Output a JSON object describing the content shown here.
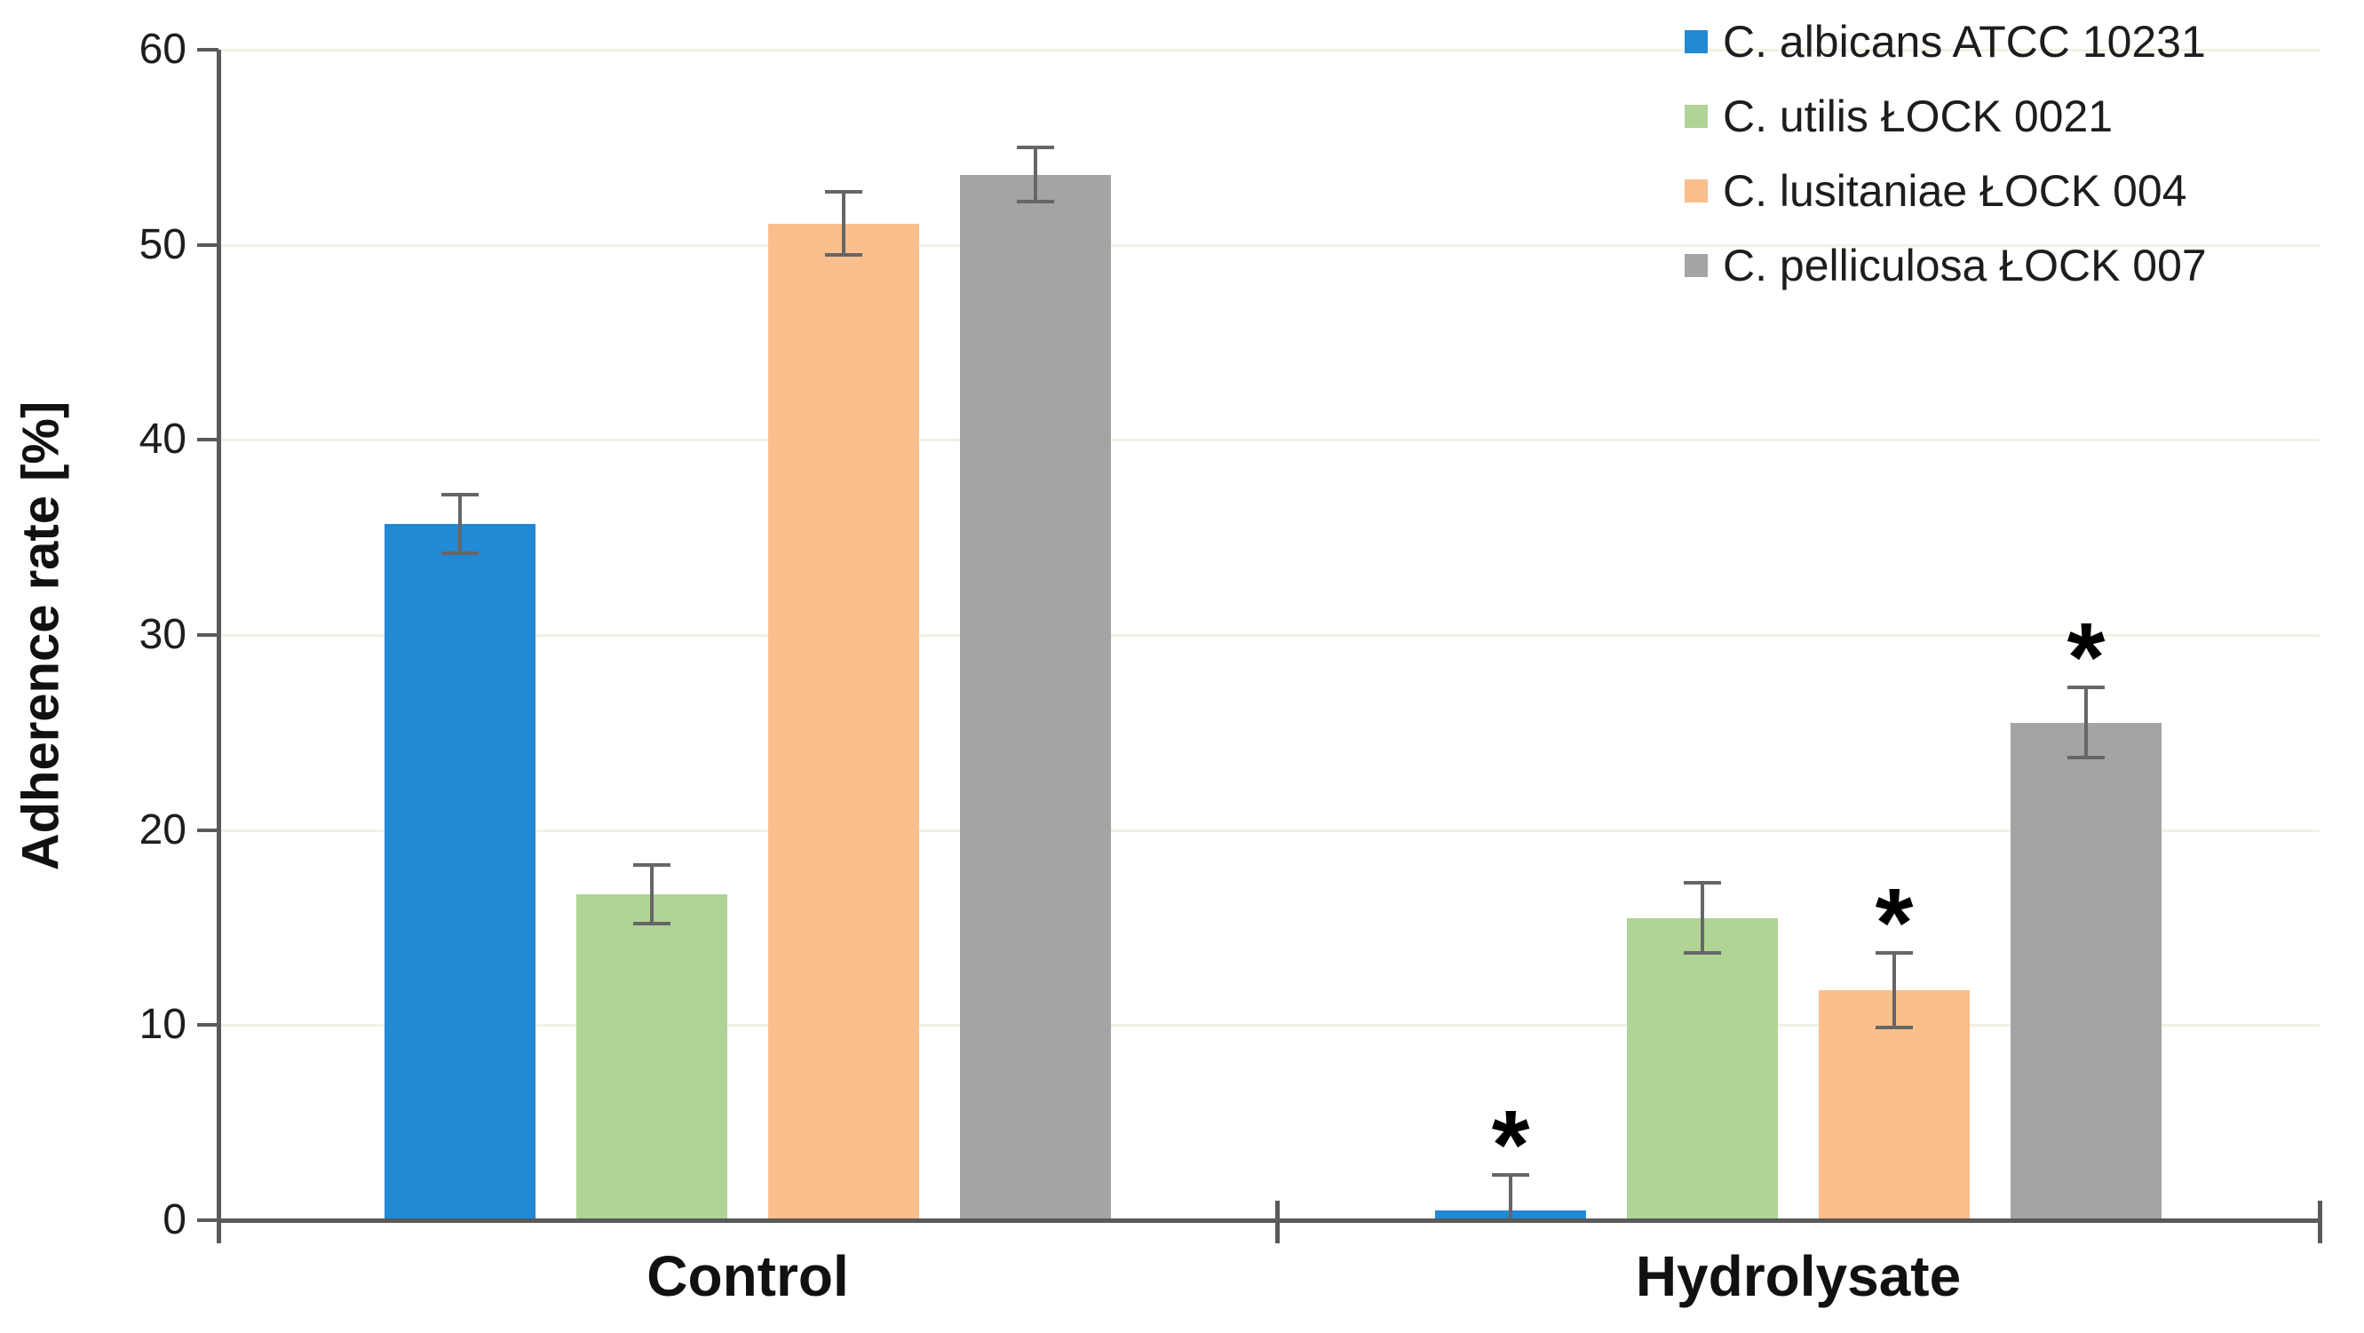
{
  "figure": {
    "background": "#ffffff"
  },
  "chart_data": {
    "type": "bar",
    "title": "",
    "xlabel": "",
    "ylabel": "Adherence rate [%]",
    "ylim": [
      0,
      60
    ],
    "yticks": [
      0,
      10,
      20,
      30,
      40,
      50,
      60
    ],
    "grid": "horizontal-faint",
    "legend_position": "top-right",
    "significance_marker": "*",
    "categories": [
      "Control",
      "Hydrolysate"
    ],
    "series": [
      {
        "name": "C. albicans ATCC 10231",
        "color": "#2289d4",
        "values": [
          35.7,
          0.5
        ],
        "errors": [
          1.5,
          1.8
        ],
        "significance": [
          "",
          "*"
        ]
      },
      {
        "name": "C. utilis ŁOCK 0021",
        "color": "#afd495",
        "values": [
          16.7,
          15.5
        ],
        "errors": [
          1.5,
          1.8
        ],
        "significance": [
          "",
          ""
        ]
      },
      {
        "name": "C. lusitaniae ŁOCK 004",
        "color": "#fbbe8d",
        "values": [
          51.1,
          11.8
        ],
        "errors": [
          1.6,
          1.9
        ],
        "significance": [
          "",
          "*"
        ]
      },
      {
        "name": "C. pelliculosa ŁOCK 007",
        "color": "#a4a4a4",
        "values": [
          53.6,
          25.5
        ],
        "errors": [
          1.4,
          1.8
        ],
        "significance": [
          "",
          "*"
        ]
      }
    ],
    "colors": {
      "axis": "#5a5a5a",
      "gridline": "#f3f0e6",
      "error_bar": "#666666",
      "text": "#1a1a1a"
    }
  }
}
